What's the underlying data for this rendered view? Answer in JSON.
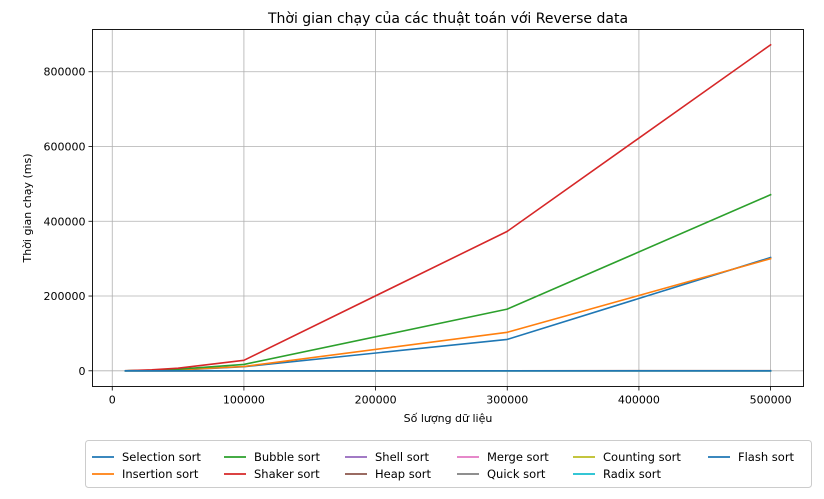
{
  "chart_data": {
    "type": "line",
    "title": "Thời gian chạy của các thuật toán với Reverse data",
    "xlabel": "Số lượng dữ liệu",
    "ylabel": "Thời gian chạy (ms)",
    "x": [
      10000,
      30000,
      50000,
      100000,
      300000,
      500000
    ],
    "xlim": [
      -15000,
      525000
    ],
    "ylim": [
      -42000,
      913000
    ],
    "xticks": [
      0,
      100000,
      200000,
      300000,
      400000,
      500000
    ],
    "yticks": [
      0,
      200000,
      400000,
      600000,
      800000
    ],
    "grid": true,
    "legend_position": "bottom",
    "series": [
      {
        "name": "Selection sort",
        "color": "#1f77b4",
        "values": [
          70,
          700,
          2000,
          11000,
          84000,
          303000
        ]
      },
      {
        "name": "Insertion sort",
        "color": "#ff7f0e",
        "values": [
          80,
          900,
          2700,
          11500,
          103000,
          300000
        ]
      },
      {
        "name": "Bubble sort",
        "color": "#2ca02c",
        "values": [
          150,
          1500,
          4200,
          17000,
          165000,
          471000
        ]
      },
      {
        "name": "Shaker sort",
        "color": "#d62728",
        "values": [
          200,
          2500,
          7000,
          28000,
          373000,
          872000
        ]
      },
      {
        "name": "Shell sort",
        "color": "#9467bd",
        "values": [
          1,
          3,
          6,
          12,
          40,
          80
        ]
      },
      {
        "name": "Heap sort",
        "color": "#8c564b",
        "values": [
          3,
          10,
          18,
          40,
          130,
          230
        ]
      },
      {
        "name": "Merge sort",
        "color": "#e377c2",
        "values": [
          3,
          8,
          14,
          30,
          100,
          170
        ]
      },
      {
        "name": "Quick sort",
        "color": "#7f7f7f",
        "values": [
          1,
          2,
          4,
          8,
          25,
          45
        ]
      },
      {
        "name": "Counting sort",
        "color": "#bcbd22",
        "values": [
          0,
          0,
          1,
          1,
          3,
          5
        ]
      },
      {
        "name": "Radix sort",
        "color": "#17becf",
        "values": [
          1,
          3,
          5,
          10,
          30,
          55
        ]
      },
      {
        "name": "Flash sort",
        "color": "#1f77b4",
        "values": [
          0,
          1,
          1,
          2,
          6,
          10
        ]
      }
    ]
  }
}
